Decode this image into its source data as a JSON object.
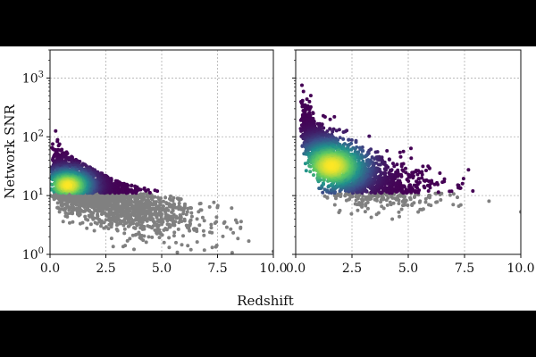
{
  "figure": {
    "xlabel": "Redshift",
    "ylabel": "Network SNR"
  },
  "colors": {
    "background_band": "#000000",
    "panel": "#ffffff",
    "below_threshold": "#808080",
    "density_low": "#440154",
    "density_mid": "#21918c",
    "density_high": "#fde725",
    "grid": "#b0b0b0"
  },
  "chart_data": [
    {
      "type": "scatter",
      "panel": "left",
      "title": "",
      "xlabel": "",
      "ylabel": "Network SNR",
      "xlim": [
        0,
        10
      ],
      "ylim": [
        1,
        3000
      ],
      "yscale": "log",
      "grid": true,
      "x_ticks": [
        "0.0",
        "2.5",
        "5.0",
        "7.5",
        "10.0"
      ],
      "y_ticks": [
        {
          "base": "10",
          "exp": "0",
          "value": 1
        },
        {
          "base": "10",
          "exp": "1",
          "value": 10
        },
        {
          "base": "10",
          "exp": "2",
          "value": 100
        },
        {
          "base": "10",
          "exp": "3",
          "value": 1000
        }
      ],
      "snr_threshold": 11,
      "density_peak": {
        "x": 0.8,
        "y": 15
      },
      "trend": [
        {
          "x": 0.3,
          "y": 22
        },
        {
          "x": 1.0,
          "y": 16
        },
        {
          "x": 2.0,
          "y": 12
        },
        {
          "x": 3.0,
          "y": 9
        },
        {
          "x": 4.0,
          "y": 6.5
        },
        {
          "x": 5.0,
          "y": 5
        },
        {
          "x": 6.0,
          "y": 4
        },
        {
          "x": 7.0,
          "y": 3.2
        },
        {
          "x": 8.0,
          "y": 2.7
        },
        {
          "x": 9.0,
          "y": 2.3
        },
        {
          "x": 10.0,
          "y": 2
        }
      ],
      "max_snr_envelope": [
        {
          "x": 0.1,
          "y": 220
        },
        {
          "x": 0.5,
          "y": 70
        },
        {
          "x": 1.0,
          "y": 45
        },
        {
          "x": 2.0,
          "y": 28
        },
        {
          "x": 3.0,
          "y": 18
        },
        {
          "x": 4.0,
          "y": 14
        },
        {
          "x": 5.0,
          "y": 12
        },
        {
          "x": 6.0,
          "y": 9
        },
        {
          "x": 7.0,
          "y": 8
        },
        {
          "x": 8.0,
          "y": 7
        },
        {
          "x": 9.0,
          "y": 6
        },
        {
          "x": 10.0,
          "y": 5
        }
      ]
    },
    {
      "type": "scatter",
      "panel": "right",
      "title": "",
      "xlabel": "",
      "ylabel": "",
      "xlim": [
        0,
        10
      ],
      "ylim": [
        1,
        3000
      ],
      "yscale": "log",
      "grid": true,
      "x_ticks": [
        "0.0",
        "2.5",
        "5.0",
        "7.5",
        "10.0"
      ],
      "snr_threshold": 11,
      "density_peak": {
        "x": 1.6,
        "y": 32
      },
      "trend": [
        {
          "x": 0.3,
          "y": 180
        },
        {
          "x": 1.0,
          "y": 55
        },
        {
          "x": 2.0,
          "y": 30
        },
        {
          "x": 3.0,
          "y": 20
        },
        {
          "x": 4.0,
          "y": 16
        },
        {
          "x": 5.0,
          "y": 14
        },
        {
          "x": 6.0,
          "y": 13
        },
        {
          "x": 7.0,
          "y": 12
        },
        {
          "x": 8.0,
          "y": 11
        },
        {
          "x": 9.0,
          "y": 10
        },
        {
          "x": 10.0,
          "y": 10
        }
      ],
      "max_snr_envelope": [
        {
          "x": 0.1,
          "y": 2000
        },
        {
          "x": 0.5,
          "y": 800
        },
        {
          "x": 1.0,
          "y": 400
        },
        {
          "x": 2.0,
          "y": 200
        },
        {
          "x": 3.0,
          "y": 140
        },
        {
          "x": 4.0,
          "y": 100
        },
        {
          "x": 5.0,
          "y": 80
        },
        {
          "x": 6.0,
          "y": 65
        },
        {
          "x": 7.0,
          "y": 55
        },
        {
          "x": 8.0,
          "y": 45
        },
        {
          "x": 9.0,
          "y": 40
        },
        {
          "x": 10.0,
          "y": 35
        }
      ]
    }
  ]
}
